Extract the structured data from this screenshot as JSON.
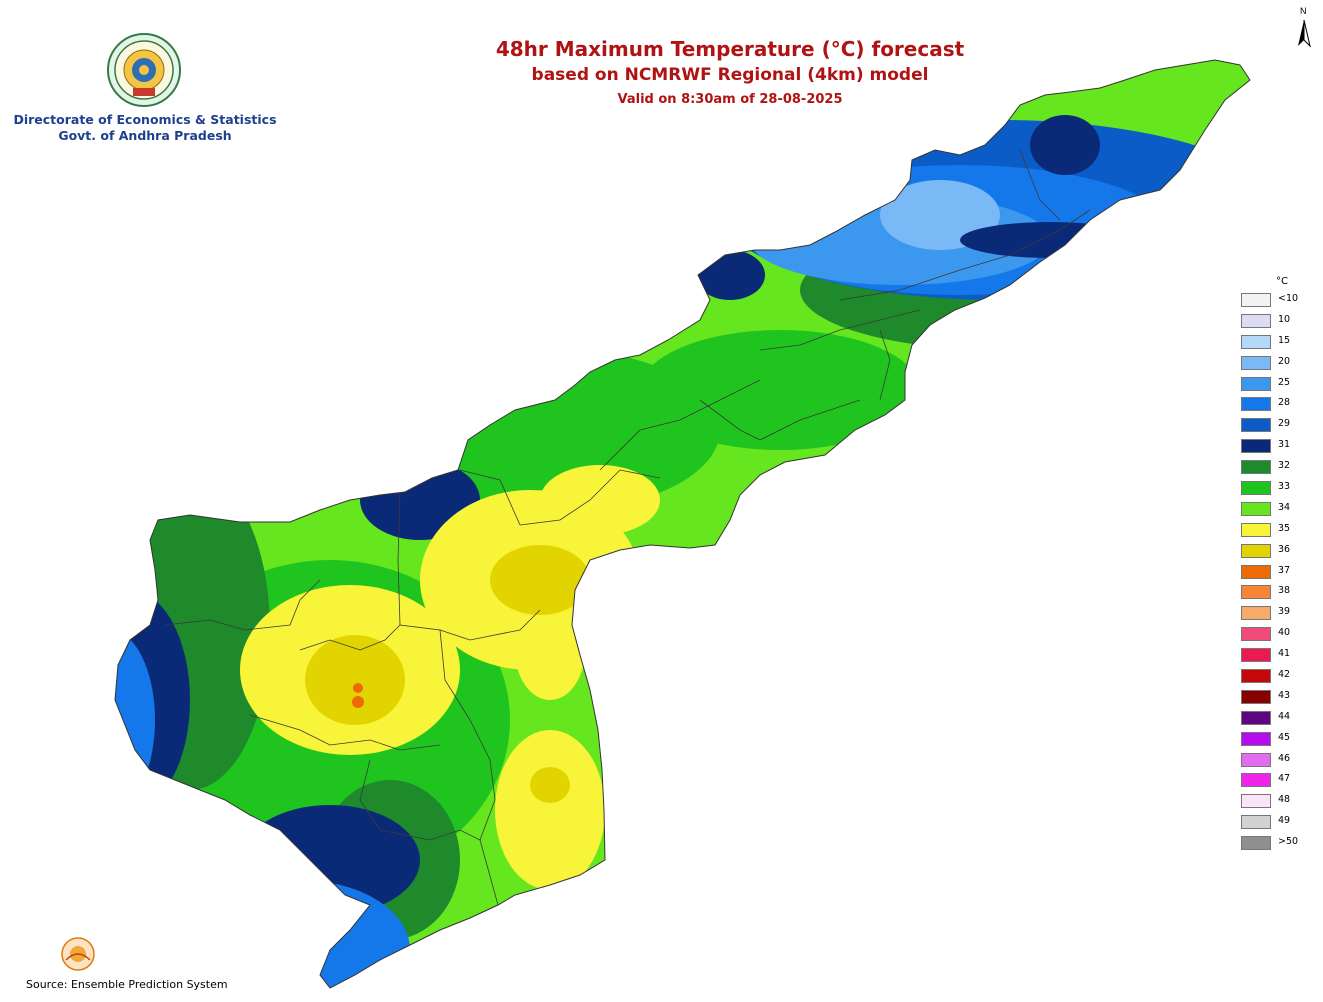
{
  "header": {
    "org_line1": "Directorate of Economics & Statistics",
    "org_line2": "Govt. of Andhra Pradesh",
    "title": "48hr Maximum Temperature (°C) forecast",
    "subtitle": "based on NCMRWF Regional (4km) model",
    "valid": "Valid on 8:30am of 28-08-2025"
  },
  "north_label": "N",
  "legend": {
    "unit": "°C",
    "items": [
      {
        "label": "<10",
        "color": "#f2f2f2"
      },
      {
        "label": "10",
        "color": "#dcdcf2"
      },
      {
        "label": "15",
        "color": "#b4d8f8"
      },
      {
        "label": "20",
        "color": "#7ab8f6"
      },
      {
        "label": "25",
        "color": "#3c98ee"
      },
      {
        "label": "28",
        "color": "#1478ea"
      },
      {
        "label": "29",
        "color": "#0c5cc8"
      },
      {
        "label": "31",
        "color": "#0a2a78"
      },
      {
        "label": "32",
        "color": "#1e8a2c"
      },
      {
        "label": "33",
        "color": "#20c41e"
      },
      {
        "label": "34",
        "color": "#66e61e"
      },
      {
        "label": "35",
        "color": "#f8f43a"
      },
      {
        "label": "36",
        "color": "#e2d400"
      },
      {
        "label": "37",
        "color": "#ee6a06"
      },
      {
        "label": "38",
        "color": "#f88636"
      },
      {
        "label": "39",
        "color": "#f8aa6a"
      },
      {
        "label": "40",
        "color": "#f24a7a"
      },
      {
        "label": "41",
        "color": "#ec1a52"
      },
      {
        "label": "42",
        "color": "#c40808"
      },
      {
        "label": "43",
        "color": "#860000"
      },
      {
        "label": "44",
        "color": "#5c0680"
      },
      {
        "label": "45",
        "color": "#b80cf0"
      },
      {
        "label": "46",
        "color": "#e46cf0"
      },
      {
        "label": "47",
        "color": "#f024e8"
      },
      {
        "label": "48",
        "color": "#f8e6f8"
      },
      {
        "label": "49",
        "color": "#d2d2d2"
      },
      {
        "label": ">50",
        "color": "#8e8e8e"
      }
    ]
  },
  "source": "Source: Ensemble Prediction System"
}
